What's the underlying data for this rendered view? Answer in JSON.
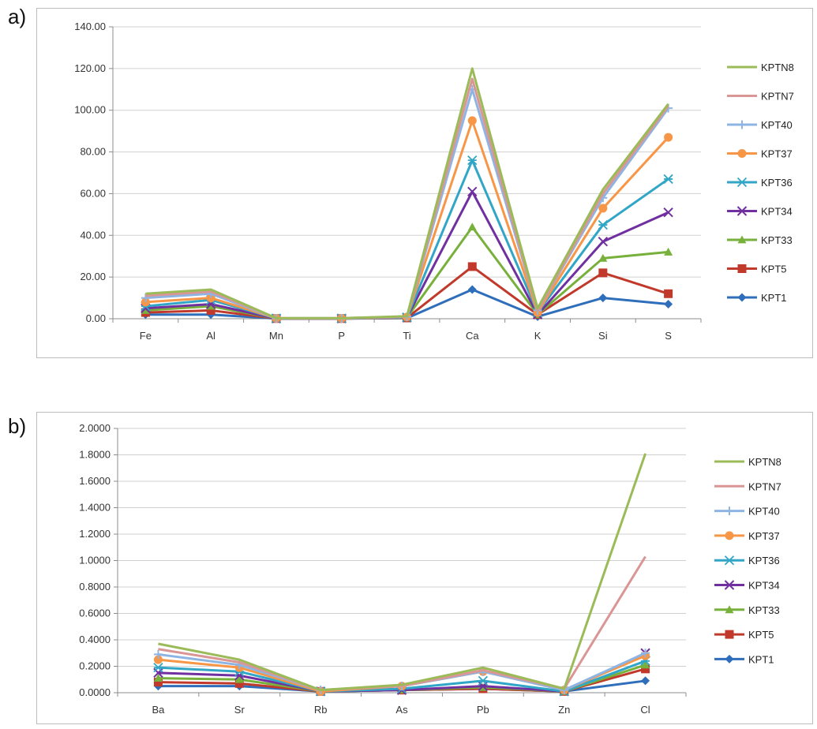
{
  "panels": [
    {
      "label": "a)"
    },
    {
      "label": "b)"
    }
  ],
  "chart_data": [
    {
      "type": "line",
      "title": "",
      "xlabel": "",
      "ylabel": "",
      "ylim": [
        0,
        140
      ],
      "yticks": [
        "0.00",
        "20.00",
        "40.00",
        "60.00",
        "80.00",
        "100.00",
        "120.00",
        "140.00"
      ],
      "grid": true,
      "legend_position": "right",
      "categories": [
        "Fe",
        "Al",
        "Mn",
        "P",
        "Ti",
        "Ca",
        "K",
        "Si",
        "S"
      ],
      "series": [
        {
          "name": "KPTN8",
          "color": "#9bbb59",
          "marker": "none",
          "values": [
            12,
            14,
            0.3,
            0.3,
            1.2,
            120,
            5,
            62,
            103
          ]
        },
        {
          "name": "KPTN7",
          "color": "#d99694",
          "marker": "none",
          "values": [
            11,
            13,
            0.3,
            0.3,
            1.0,
            115,
            4,
            60,
            102
          ]
        },
        {
          "name": "KPT40",
          "color": "#8eb4e3",
          "marker": "plus",
          "values": [
            10,
            12,
            0.2,
            0.2,
            0.9,
            110,
            4,
            58,
            101
          ]
        },
        {
          "name": "KPT37",
          "color": "#f79646",
          "marker": "circle",
          "values": [
            8,
            10,
            0.2,
            0.2,
            0.8,
            95,
            3,
            53,
            87
          ]
        },
        {
          "name": "KPT36",
          "color": "#31a6c6",
          "marker": "asterisk",
          "values": [
            6,
            9,
            0.2,
            0.2,
            0.7,
            76,
            3,
            45,
            67
          ]
        },
        {
          "name": "KPT34",
          "color": "#7030a0",
          "marker": "x",
          "values": [
            5,
            7,
            0.1,
            0.1,
            0.6,
            61,
            2,
            37,
            51
          ]
        },
        {
          "name": "KPT33",
          "color": "#77b03a",
          "marker": "triangle",
          "values": [
            4,
            6,
            0.1,
            0.1,
            0.5,
            44,
            2,
            29,
            32
          ]
        },
        {
          "name": "KPT5",
          "color": "#c0392b",
          "marker": "square",
          "values": [
            3,
            4,
            0.1,
            0.1,
            0.4,
            25,
            2,
            22,
            12
          ]
        },
        {
          "name": "KPT1",
          "color": "#2f6eba",
          "marker": "diamond",
          "values": [
            2,
            2,
            0.1,
            0.1,
            0.3,
            14,
            1,
            10,
            7
          ]
        }
      ]
    },
    {
      "type": "line",
      "title": "",
      "xlabel": "",
      "ylabel": "",
      "ylim": [
        0,
        2
      ],
      "yticks": [
        "0.0000",
        "0.2000",
        "0.4000",
        "0.6000",
        "0.8000",
        "1.0000",
        "1.2000",
        "1.4000",
        "1.6000",
        "1.8000",
        "2.0000"
      ],
      "grid": true,
      "legend_position": "right",
      "categories": [
        "Ba",
        "Sr",
        "Rb",
        "As",
        "Pb",
        "Zn",
        "Cl"
      ],
      "series": [
        {
          "name": "KPTN8",
          "color": "#9bbb59",
          "marker": "none",
          "values": [
            0.37,
            0.25,
            0.02,
            0.06,
            0.19,
            0.03,
            1.81
          ]
        },
        {
          "name": "KPTN7",
          "color": "#d99694",
          "marker": "none",
          "values": [
            0.33,
            0.23,
            0.02,
            0.05,
            0.17,
            0.03,
            1.03
          ]
        },
        {
          "name": "KPT40",
          "color": "#8eb4e3",
          "marker": "plus",
          "values": [
            0.29,
            0.21,
            0.02,
            0.05,
            0.16,
            0.02,
            0.3
          ]
        },
        {
          "name": "KPT37",
          "color": "#f79646",
          "marker": "circle",
          "values": [
            0.25,
            0.19,
            0.01,
            0.05,
            0.16,
            0.02,
            0.28
          ]
        },
        {
          "name": "KPT36",
          "color": "#31a6c6",
          "marker": "asterisk",
          "values": [
            0.19,
            0.16,
            0.01,
            0.03,
            0.09,
            0.01,
            0.24
          ]
        },
        {
          "name": "KPT34",
          "color": "#7030a0",
          "marker": "x",
          "values": [
            0.15,
            0.13,
            0.01,
            0.02,
            0.05,
            0.01,
            0.3
          ]
        },
        {
          "name": "KPT33",
          "color": "#77b03a",
          "marker": "triangle",
          "values": [
            0.11,
            0.1,
            0.01,
            0.02,
            0.04,
            0.01,
            0.21
          ]
        },
        {
          "name": "KPT5",
          "color": "#c0392b",
          "marker": "square",
          "values": [
            0.08,
            0.07,
            0.01,
            0.02,
            0.03,
            0.01,
            0.18
          ]
        },
        {
          "name": "KPT1",
          "color": "#2f6eba",
          "marker": "diamond",
          "values": [
            0.05,
            0.05,
            0.01,
            0.02,
            0.03,
            0.01,
            0.09
          ]
        }
      ]
    }
  ]
}
